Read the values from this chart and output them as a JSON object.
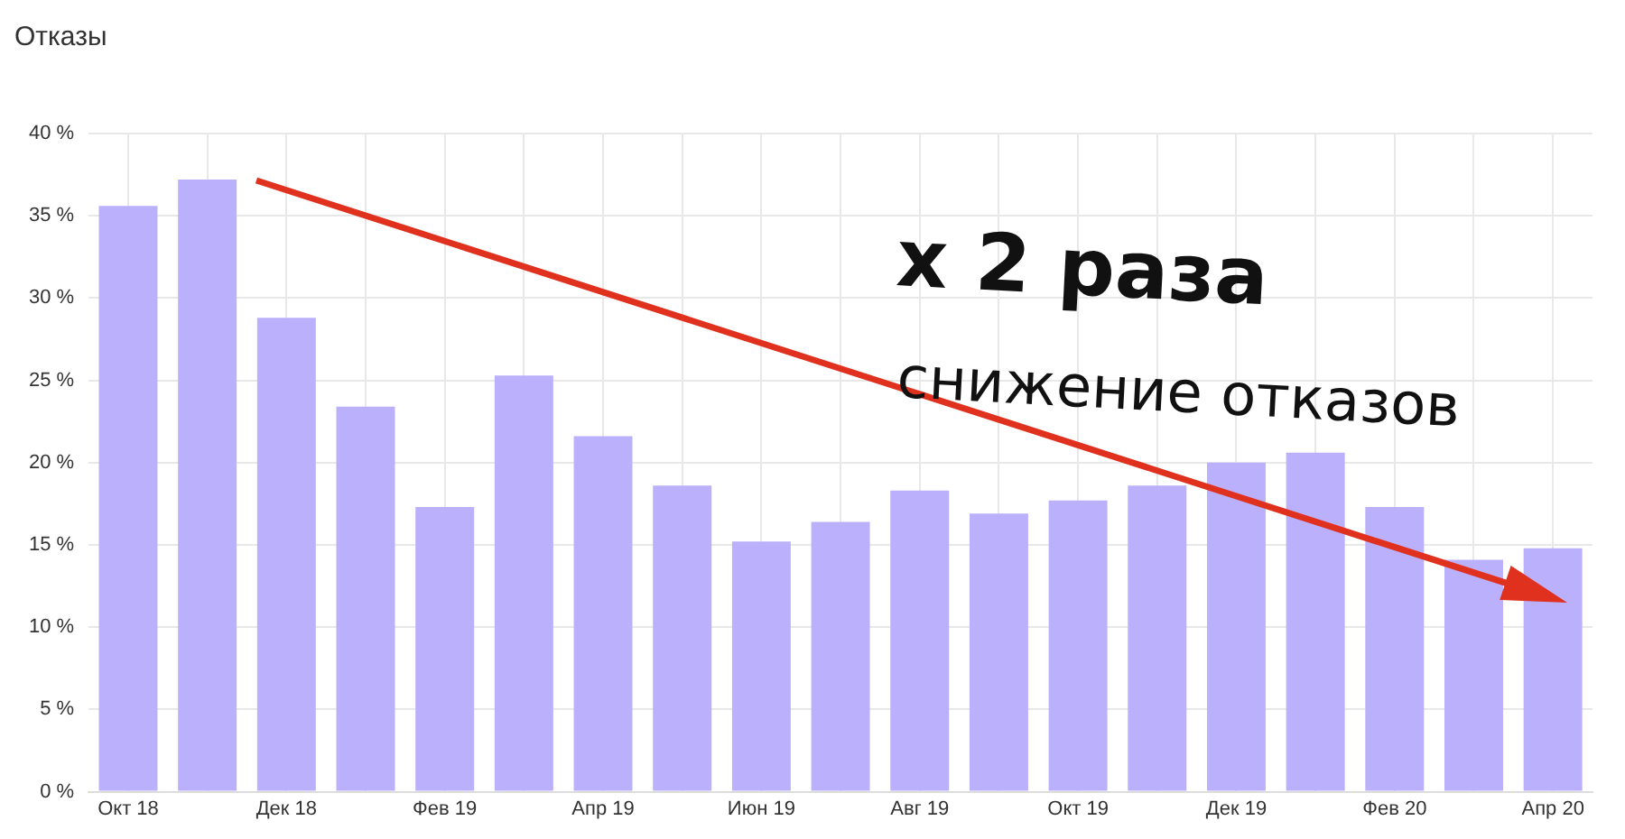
{
  "chart_data": {
    "type": "bar",
    "title": "Отказы",
    "categories": [
      "Окт 18",
      null,
      "Дек 18",
      null,
      "Фев 19",
      null,
      "Апр 19",
      null,
      "Июн 19",
      null,
      "Авг 19",
      null,
      "Окт 19",
      null,
      "Дек 19",
      null,
      "Фев 20",
      null,
      "Апр 20"
    ],
    "values": [
      35.6,
      37.2,
      28.8,
      23.4,
      17.3,
      25.3,
      21.6,
      18.6,
      15.2,
      16.4,
      18.3,
      16.9,
      17.7,
      18.6,
      20.0,
      20.6,
      17.3,
      14.1,
      14.8
    ],
    "color": "#bbb0fc",
    "ylim": [
      0,
      40
    ],
    "yticks": [
      {
        "value": 0,
        "label": "0 %"
      },
      {
        "value": 5,
        "label": "5 %"
      },
      {
        "value": 10,
        "label": "10 %"
      },
      {
        "value": 15,
        "label": "15 %"
      },
      {
        "value": 20,
        "label": "20 %"
      },
      {
        "value": 25,
        "label": "25 %"
      },
      {
        "value": 30,
        "label": "30 %"
      },
      {
        "value": 35,
        "label": "35 %"
      },
      {
        "value": 40,
        "label": "40 %"
      }
    ],
    "grid": true,
    "legend": false,
    "annotations": [
      "x 2 раза",
      "снижение отказов"
    ]
  }
}
